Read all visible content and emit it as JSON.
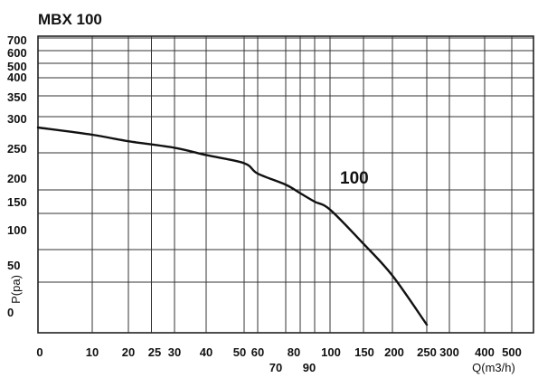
{
  "chart_data": {
    "type": "line",
    "title": "MBX 100",
    "xlabel": "Q(m3/h)",
    "ylabel": "P(pa)",
    "grid": true,
    "x_ticks": [
      {
        "value": 0,
        "label": "0"
      },
      {
        "value": 10,
        "label": "10"
      },
      {
        "value": 20,
        "label": "20"
      },
      {
        "value": 25,
        "label": "25"
      },
      {
        "value": 30,
        "label": "30"
      },
      {
        "value": 40,
        "label": "40"
      },
      {
        "value": 50,
        "label": "50"
      },
      {
        "value": 60,
        "label": "60"
      },
      {
        "value": 70,
        "label": "70"
      },
      {
        "value": 80,
        "label": "80"
      },
      {
        "value": 90,
        "label": "90"
      },
      {
        "value": 100,
        "label": "100"
      },
      {
        "value": 150,
        "label": "150"
      },
      {
        "value": 200,
        "label": "200"
      },
      {
        "value": 250,
        "label": "250"
      },
      {
        "value": 300,
        "label": "300"
      },
      {
        "value": 400,
        "label": "400"
      },
      {
        "value": 500,
        "label": "500"
      }
    ],
    "y_ticks": [
      {
        "value": 0,
        "label": "0"
      },
      {
        "value": 50,
        "label": "50"
      },
      {
        "value": 100,
        "label": "100"
      },
      {
        "value": 150,
        "label": "150"
      },
      {
        "value": 200,
        "label": "200"
      },
      {
        "value": 250,
        "label": "250"
      },
      {
        "value": 300,
        "label": "300"
      },
      {
        "value": 350,
        "label": "350"
      },
      {
        "value": 400,
        "label": "400"
      },
      {
        "value": 500,
        "label": "500"
      },
      {
        "value": 600,
        "label": "600"
      },
      {
        "value": 700,
        "label": "700"
      }
    ],
    "series": [
      {
        "name": "100",
        "x": [
          0,
          10,
          20,
          30,
          40,
          50,
          60,
          70,
          80,
          90,
          100,
          150,
          200,
          250
        ],
        "y": [
          285,
          275,
          266,
          257,
          247,
          236,
          222,
          207,
          193,
          175,
          158,
          108,
          60,
          8
        ]
      }
    ]
  }
}
